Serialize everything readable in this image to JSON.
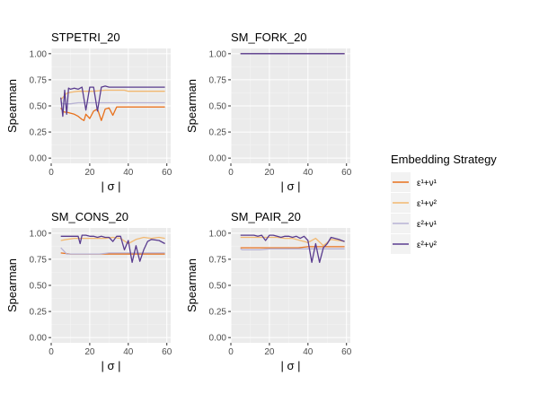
{
  "legend": {
    "title": "Embedding Strategy",
    "entries": [
      {
        "label": "ε¹+ν¹",
        "color": "#e8711c"
      },
      {
        "label": "ε¹+ν²",
        "color": "#f2b870"
      },
      {
        "label": "ε²+ν¹",
        "color": "#b7b2d4"
      },
      {
        "label": "ε²+ν²",
        "color": "#5a3c8f"
      }
    ]
  },
  "chart_data": [
    {
      "type": "line",
      "title": "STPETRI_20",
      "xlabel": "| σ |",
      "ylabel": "Spearman",
      "xlim": [
        0,
        62
      ],
      "ylim": [
        -0.05,
        1.05
      ],
      "xticks": [
        0,
        20,
        40,
        60
      ],
      "yticks": [
        0.0,
        0.25,
        0.5,
        0.75,
        1.0
      ],
      "ytick_labels": [
        "0.00",
        "0.25",
        "0.50",
        "0.75",
        "1.00"
      ],
      "grid": true,
      "series": [
        {
          "x": [
            5,
            6,
            7,
            8,
            10,
            12,
            14,
            16,
            17,
            18,
            20,
            22,
            24,
            26,
            28,
            30,
            32,
            34,
            36,
            38,
            40,
            50,
            59
          ],
          "values": [
            0.48,
            0.45,
            0.44,
            0.44,
            0.43,
            0.42,
            0.4,
            0.37,
            0.36,
            0.42,
            0.38,
            0.45,
            0.47,
            0.36,
            0.47,
            0.48,
            0.41,
            0.49,
            0.49,
            0.49,
            0.49,
            0.49,
            0.49
          ]
        },
        {
          "x": [
            5,
            6,
            8,
            10,
            14,
            18,
            22,
            28,
            34,
            38,
            40,
            50,
            59
          ],
          "values": [
            0.56,
            0.58,
            0.62,
            0.63,
            0.64,
            0.64,
            0.64,
            0.65,
            0.65,
            0.65,
            0.64,
            0.64,
            0.64
          ]
        },
        {
          "x": [
            5,
            6,
            8,
            10,
            14,
            18,
            22,
            28,
            34,
            38,
            40,
            50,
            59
          ],
          "values": [
            0.54,
            0.52,
            0.52,
            0.52,
            0.53,
            0.53,
            0.53,
            0.53,
            0.53,
            0.53,
            0.53,
            0.53,
            0.53
          ]
        },
        {
          "x": [
            5,
            6,
            7,
            8,
            9,
            10,
            12,
            14,
            16,
            18,
            20,
            22,
            24,
            26,
            28,
            30,
            32,
            34,
            38,
            40,
            50,
            59
          ],
          "values": [
            0.58,
            0.4,
            0.65,
            0.42,
            0.67,
            0.66,
            0.67,
            0.66,
            0.68,
            0.46,
            0.68,
            0.68,
            0.45,
            0.68,
            0.69,
            0.68,
            0.68,
            0.68,
            0.68,
            0.68,
            0.68,
            0.68
          ]
        }
      ]
    },
    {
      "type": "line",
      "title": "SM_FORK_20",
      "xlabel": "| σ |",
      "ylabel": "Spearman",
      "xlim": [
        0,
        62
      ],
      "ylim": [
        -0.05,
        1.05
      ],
      "xticks": [
        0,
        20,
        40,
        60
      ],
      "yticks": [
        0.0,
        0.25,
        0.5,
        0.75,
        1.0
      ],
      "ytick_labels": [
        "0.00",
        "0.25",
        "0.50",
        "0.75",
        "1.00"
      ],
      "grid": true,
      "series": [
        {
          "x": [
            5,
            59
          ],
          "values": [
            1.0,
            1.0
          ]
        },
        {
          "x": [
            5,
            59
          ],
          "values": [
            1.0,
            1.0
          ]
        },
        {
          "x": [
            5,
            59
          ],
          "values": [
            1.0,
            1.0
          ]
        },
        {
          "x": [
            5,
            59
          ],
          "values": [
            1.0,
            1.0
          ]
        }
      ]
    },
    {
      "type": "line",
      "title": "SM_CONS_20",
      "xlabel": "| σ |",
      "ylabel": "Spearman",
      "xlim": [
        0,
        62
      ],
      "ylim": [
        -0.05,
        1.05
      ],
      "xticks": [
        0,
        20,
        40,
        60
      ],
      "yticks": [
        0.0,
        0.25,
        0.5,
        0.75,
        1.0
      ],
      "ytick_labels": [
        "0.00",
        "0.25",
        "0.50",
        "0.75",
        "1.00"
      ],
      "grid": true,
      "series": [
        {
          "x": [
            5,
            10,
            15,
            20,
            25,
            30,
            35,
            40,
            45,
            50,
            55,
            59
          ],
          "values": [
            0.81,
            0.8,
            0.8,
            0.8,
            0.8,
            0.8,
            0.8,
            0.8,
            0.8,
            0.8,
            0.8,
            0.8
          ]
        },
        {
          "x": [
            5,
            8,
            12,
            16,
            20,
            24,
            28,
            32,
            36,
            40,
            44,
            48,
            52,
            56,
            59
          ],
          "values": [
            0.93,
            0.94,
            0.95,
            0.95,
            0.95,
            0.95,
            0.95,
            0.96,
            0.95,
            0.9,
            0.94,
            0.96,
            0.95,
            0.96,
            0.95
          ]
        },
        {
          "x": [
            5,
            6,
            8,
            10,
            15,
            20,
            25,
            30,
            35,
            40,
            45,
            50,
            55,
            59
          ],
          "values": [
            0.86,
            0.84,
            0.8,
            0.8,
            0.8,
            0.8,
            0.8,
            0.81,
            0.81,
            0.81,
            0.81,
            0.81,
            0.81,
            0.81
          ]
        },
        {
          "x": [
            5,
            8,
            10,
            12,
            14,
            15,
            16,
            18,
            20,
            22,
            24,
            26,
            28,
            30,
            32,
            34,
            36,
            38,
            40,
            42,
            44,
            46,
            48,
            50,
            52,
            56,
            59
          ],
          "values": [
            0.97,
            0.97,
            0.97,
            0.97,
            0.97,
            0.9,
            0.98,
            0.98,
            0.97,
            0.97,
            0.96,
            0.97,
            0.96,
            0.96,
            0.92,
            0.97,
            0.97,
            0.84,
            0.93,
            0.72,
            0.88,
            0.73,
            0.84,
            0.92,
            0.94,
            0.93,
            0.9
          ]
        }
      ]
    },
    {
      "type": "line",
      "title": "SM_PAIR_20",
      "xlabel": "| σ |",
      "ylabel": "Spearman",
      "xlim": [
        0,
        62
      ],
      "ylim": [
        -0.05,
        1.05
      ],
      "xticks": [
        0,
        20,
        40,
        60
      ],
      "yticks": [
        0.0,
        0.25,
        0.5,
        0.75,
        1.0
      ],
      "ytick_labels": [
        "0.00",
        "0.25",
        "0.50",
        "0.75",
        "1.00"
      ],
      "grid": true,
      "series": [
        {
          "x": [
            5,
            10,
            15,
            20,
            25,
            30,
            35,
            40,
            45,
            50,
            55,
            59
          ],
          "values": [
            0.86,
            0.86,
            0.86,
            0.86,
            0.86,
            0.86,
            0.86,
            0.87,
            0.87,
            0.87,
            0.87,
            0.87
          ]
        },
        {
          "x": [
            5,
            8,
            12,
            16,
            20,
            24,
            28,
            32,
            36,
            40,
            44,
            48,
            52,
            56,
            59
          ],
          "values": [
            0.96,
            0.96,
            0.96,
            0.96,
            0.96,
            0.96,
            0.95,
            0.95,
            0.93,
            0.91,
            0.95,
            0.88,
            0.94,
            0.93,
            0.92
          ]
        },
        {
          "x": [
            5,
            6,
            8,
            10,
            15,
            20,
            25,
            30,
            35,
            40,
            45,
            50,
            55,
            59
          ],
          "values": [
            0.85,
            0.84,
            0.84,
            0.84,
            0.84,
            0.85,
            0.85,
            0.85,
            0.85,
            0.85,
            0.85,
            0.85,
            0.85,
            0.85
          ]
        },
        {
          "x": [
            5,
            8,
            10,
            12,
            14,
            16,
            18,
            20,
            22,
            24,
            26,
            28,
            30,
            32,
            34,
            36,
            38,
            40,
            42,
            44,
            46,
            48,
            50,
            52,
            56,
            59
          ],
          "values": [
            0.98,
            0.98,
            0.98,
            0.98,
            0.97,
            0.98,
            0.93,
            0.98,
            0.98,
            0.97,
            0.96,
            0.97,
            0.97,
            0.96,
            0.97,
            0.95,
            0.97,
            0.93,
            0.72,
            0.9,
            0.72,
            0.86,
            0.9,
            0.96,
            0.94,
            0.92
          ]
        }
      ]
    }
  ]
}
